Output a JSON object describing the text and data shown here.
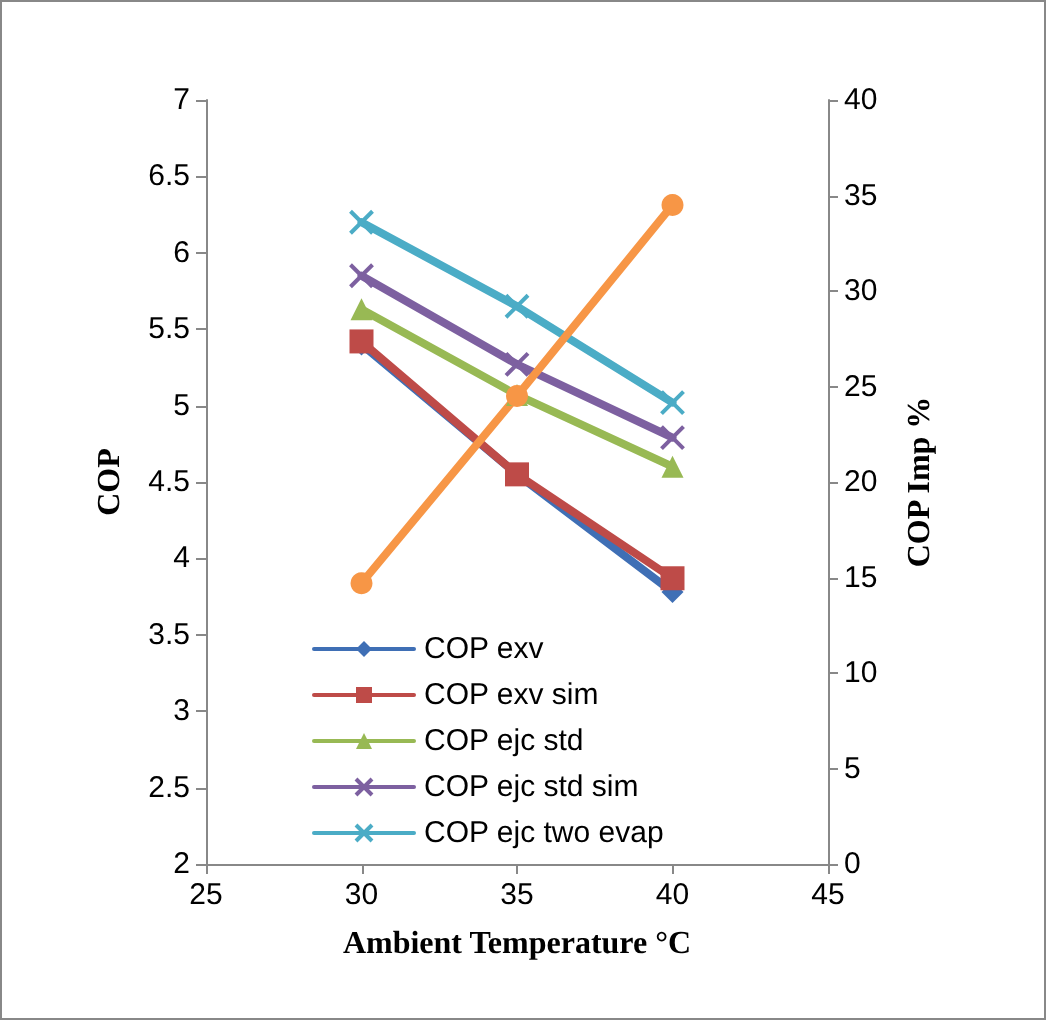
{
  "chart_data": {
    "type": "line",
    "xlabel": "Ambient Temperature °C",
    "ylabel": "COP",
    "y2label": "COP Imp %",
    "x": [
      30,
      35,
      40
    ],
    "xlim": [
      25,
      45
    ],
    "xticks": [
      25,
      30,
      35,
      40,
      45
    ],
    "ylim": [
      2,
      7
    ],
    "yticks": [
      2,
      2.5,
      3,
      3.5,
      4,
      4.5,
      5,
      5.5,
      6,
      6.5,
      7
    ],
    "y2lim": [
      0,
      40
    ],
    "y2ticks": [
      0,
      5,
      10,
      15,
      20,
      25,
      30,
      35,
      40
    ],
    "grid": false,
    "legend": "bottom left",
    "line_style": "solid",
    "series": [
      {
        "name": "COP exv",
        "color": "#3f6fb5",
        "marker": "diamond",
        "values": [
          5.4,
          4.55,
          3.78
        ]
      },
      {
        "name": "COP exv sim",
        "color": "#be4b48",
        "marker": "square",
        "values": [
          5.42,
          4.55,
          3.87
        ]
      },
      {
        "name": "COP ejc std",
        "color": "#98b954",
        "marker": "triangle",
        "values": [
          5.63,
          5.07,
          4.6
        ]
      },
      {
        "name": "COP ejc std sim",
        "color": "#7d60a0",
        "marker": "cross",
        "values": [
          5.85,
          5.27,
          4.79
        ]
      },
      {
        "name": "COP ejc two evap",
        "color": "#4bacc6",
        "marker": "cross",
        "values": [
          6.2,
          5.65,
          5.02
        ]
      },
      {
        "color": "#f79646",
        "marker": "circle",
        "axis": "y2",
        "values": [
          14.7,
          24.5,
          34.5
        ]
      }
    ]
  }
}
